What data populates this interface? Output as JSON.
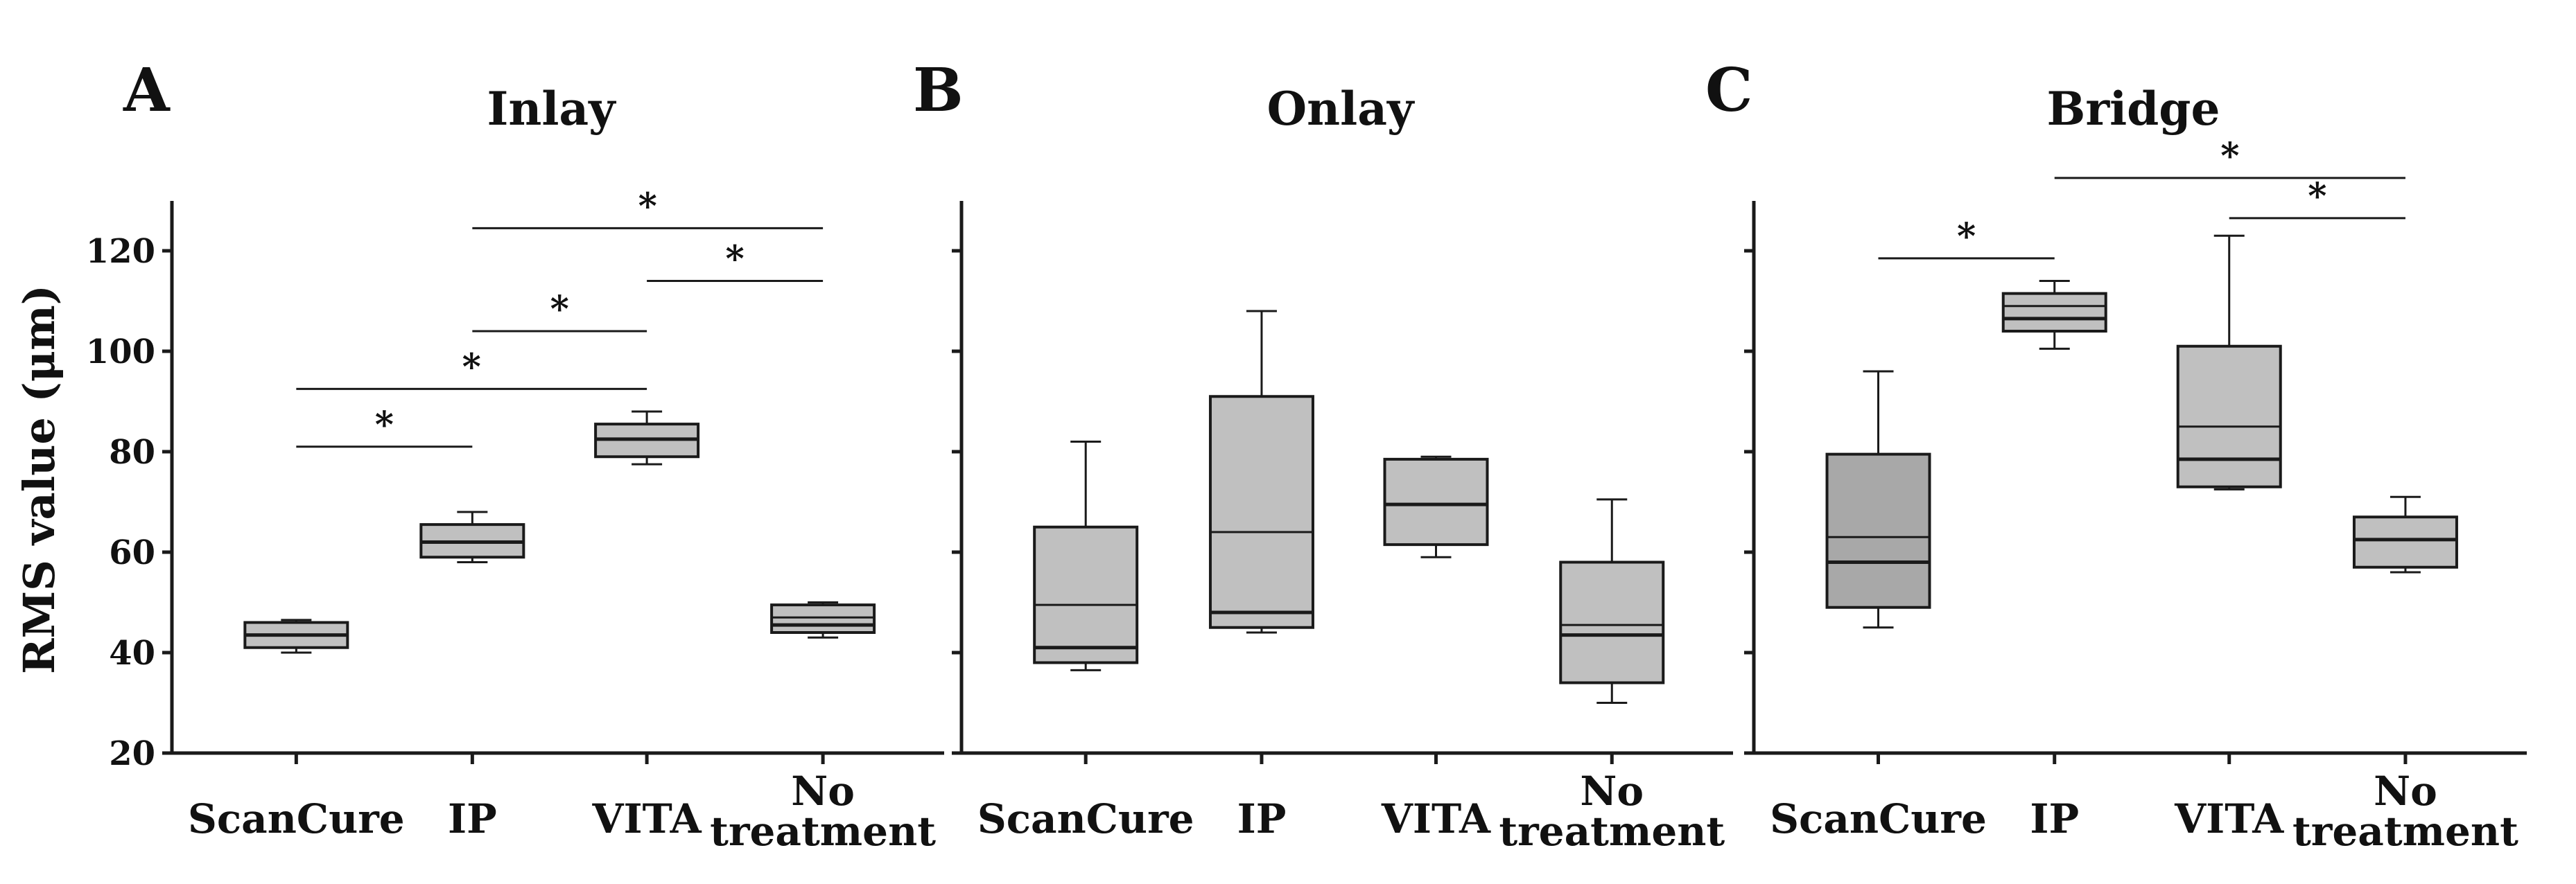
{
  "figure": {
    "ylabel": "RMS value (μm)",
    "yticks": [
      20,
      40,
      60,
      80,
      100,
      120
    ],
    "ylim": [
      20,
      130
    ],
    "categories": [
      "ScanCure",
      "IP",
      "VITA",
      "No treatment"
    ],
    "colors": {
      "box_fill": "#c0c0c0",
      "box_fill_dark": "#a8a8a8",
      "line": "#1a1a1a"
    }
  },
  "chart_data": [
    {
      "type": "box",
      "panel_letter": "A",
      "title": "Inlay",
      "categories": [
        "ScanCure",
        "IP",
        "VITA",
        "No treatment"
      ],
      "ylabel": "RMS value (μm)",
      "ylim": [
        20,
        130
      ],
      "boxes": [
        {
          "category": "ScanCure",
          "min": 40,
          "q1": 41,
          "median": 43.5,
          "median2": null,
          "q3": 46,
          "max": 46.5,
          "dark": false
        },
        {
          "category": "IP",
          "min": 58,
          "q1": 59,
          "median": 62,
          "median2": null,
          "q3": 65.5,
          "max": 68,
          "dark": false
        },
        {
          "category": "VITA",
          "min": 77.5,
          "q1": 79,
          "median": 82.5,
          "median2": null,
          "q3": 85.5,
          "max": 88,
          "dark": false
        },
        {
          "category": "No treatment",
          "min": 43,
          "q1": 44,
          "median": 45.5,
          "median2": 47,
          "q3": 49.5,
          "max": 50,
          "dark": false
        }
      ],
      "significance": [
        {
          "from": "ScanCure",
          "to": "IP",
          "y": 81,
          "label": "*"
        },
        {
          "from": "ScanCure",
          "to": "VITA",
          "y": 92.5,
          "label": "*"
        },
        {
          "from": "IP",
          "to": "VITA",
          "y": 104,
          "label": "*"
        },
        {
          "from": "VITA",
          "to": "No treatment",
          "y": 114,
          "label": "*"
        },
        {
          "from": "IP",
          "to": "No treatment",
          "y": 124.5,
          "label": "*"
        }
      ]
    },
    {
      "type": "box",
      "panel_letter": "B",
      "title": "Onlay",
      "categories": [
        "ScanCure",
        "IP",
        "VITA",
        "No treatment"
      ],
      "ylim": [
        20,
        130
      ],
      "boxes": [
        {
          "category": "ScanCure",
          "min": 36.5,
          "q1": 38,
          "median": 41,
          "median2": 49.5,
          "q3": 65,
          "max": 82,
          "dark": false
        },
        {
          "category": "IP",
          "min": 44,
          "q1": 45,
          "median": 48,
          "median2": 64,
          "q3": 91,
          "max": 108,
          "dark": false
        },
        {
          "category": "VITA",
          "min": 59,
          "q1": 61.5,
          "median": 69.5,
          "median2": null,
          "q3": 78.5,
          "max": 79,
          "dark": false
        },
        {
          "category": "No treatment",
          "min": 30,
          "q1": 34,
          "median": 43.5,
          "median2": 45.5,
          "q3": 58,
          "max": 70.5,
          "dark": false
        }
      ],
      "significance": []
    },
    {
      "type": "box",
      "panel_letter": "C",
      "title": "Bridge",
      "categories": [
        "ScanCure",
        "IP",
        "VITA",
        "No treatment"
      ],
      "ylim": [
        20,
        130
      ],
      "boxes": [
        {
          "category": "ScanCure",
          "min": 45,
          "q1": 49,
          "median": 58,
          "median2": 63,
          "q3": 79.5,
          "max": 96,
          "dark": true
        },
        {
          "category": "IP",
          "min": 100.5,
          "q1": 104,
          "median": 106.5,
          "median2": 109,
          "q3": 111.5,
          "max": 114,
          "dark": false
        },
        {
          "category": "VITA",
          "min": 72.5,
          "q1": 73,
          "median": 78.5,
          "median2": 85,
          "q3": 101,
          "max": 123,
          "dark": false
        },
        {
          "category": "No treatment",
          "min": 56,
          "q1": 57,
          "median": 62.5,
          "median2": null,
          "q3": 67,
          "max": 71,
          "dark": false
        }
      ],
      "significance": [
        {
          "from": "ScanCure",
          "to": "IP",
          "y": 118.5,
          "label": "*"
        },
        {
          "from": "VITA",
          "to": "No treatment",
          "y": 126.5,
          "label": "*"
        },
        {
          "from": "IP",
          "to": "No treatment",
          "y": 134.5,
          "label": "*"
        }
      ]
    }
  ]
}
